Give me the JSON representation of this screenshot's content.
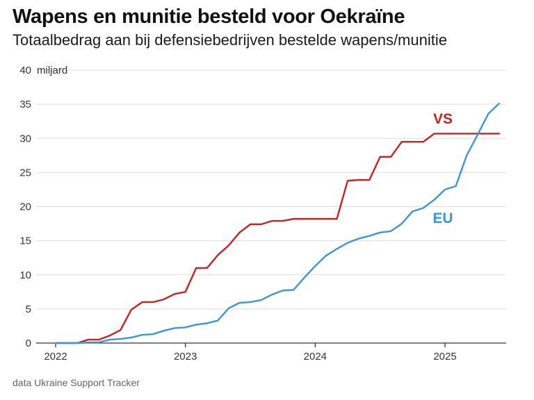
{
  "title": "Wapens en munitie besteld voor Oekraïne",
  "subtitle": "Totaalbedrag aan bij defensiebedrijven bestelde wapens/munitie",
  "source": "data Ukraine Support Tracker",
  "chart_data": {
    "type": "line",
    "title": "Wapens en munitie besteld voor Oekraïne",
    "ylabel": "miljard",
    "ylim": [
      0,
      40
    ],
    "yticks": [
      0,
      5,
      10,
      15,
      20,
      25,
      30,
      35,
      40
    ],
    "xlim": [
      2022.0,
      2025.5
    ],
    "xticks": [
      2022,
      2023,
      2024,
      2025
    ],
    "grid": true,
    "series": [
      {
        "name": "VS",
        "color": "#c8201e",
        "x": [
          2022.0,
          2022.083,
          2022.167,
          2022.25,
          2022.333,
          2022.417,
          2022.5,
          2022.583,
          2022.667,
          2022.75,
          2022.833,
          2022.917,
          2023.0,
          2023.083,
          2023.167,
          2023.25,
          2023.333,
          2023.417,
          2023.5,
          2023.583,
          2023.667,
          2023.75,
          2023.833,
          2023.917,
          2024.0,
          2024.083,
          2024.167,
          2024.25,
          2024.333,
          2024.417,
          2024.5,
          2024.583,
          2024.667,
          2024.75,
          2024.833,
          2024.917,
          2025.0,
          2025.083,
          2025.167,
          2025.25,
          2025.333,
          2025.417
        ],
        "values": [
          0,
          0,
          0,
          0.5,
          0.5,
          1.1,
          1.9,
          4.9,
          6.0,
          6.0,
          6.4,
          7.2,
          7.5,
          11.0,
          11.0,
          12.9,
          14.3,
          16.2,
          17.4,
          17.4,
          17.9,
          17.9,
          18.2,
          18.2,
          18.2,
          18.2,
          18.2,
          23.8,
          23.9,
          23.9,
          27.3,
          27.3,
          29.5,
          29.5,
          29.5,
          30.7,
          30.7,
          30.7,
          30.7,
          30.7,
          30.7,
          30.7
        ]
      },
      {
        "name": "EU",
        "color": "#3a96d8",
        "x": [
          2022.0,
          2022.083,
          2022.167,
          2022.25,
          2022.333,
          2022.417,
          2022.5,
          2022.583,
          2022.667,
          2022.75,
          2022.833,
          2022.917,
          2023.0,
          2023.083,
          2023.167,
          2023.25,
          2023.333,
          2023.417,
          2023.5,
          2023.583,
          2023.667,
          2023.75,
          2023.833,
          2023.917,
          2024.0,
          2024.083,
          2024.167,
          2024.25,
          2024.333,
          2024.417,
          2024.5,
          2024.583,
          2024.667,
          2024.75,
          2024.833,
          2024.917,
          2025.0,
          2025.083,
          2025.167,
          2025.25,
          2025.333,
          2025.417
        ],
        "values": [
          0,
          0,
          0,
          0.1,
          0.1,
          0.5,
          0.6,
          0.8,
          1.2,
          1.3,
          1.8,
          2.2,
          2.3,
          2.7,
          2.9,
          3.3,
          5.1,
          5.9,
          6.0,
          6.3,
          7.1,
          7.7,
          7.8,
          9.6,
          11.3,
          12.8,
          13.8,
          14.7,
          15.3,
          15.7,
          16.2,
          16.4,
          17.5,
          19.3,
          19.8,
          21.0,
          22.5,
          23.0,
          27.5,
          30.5,
          33.6,
          35.1
        ]
      }
    ]
  }
}
